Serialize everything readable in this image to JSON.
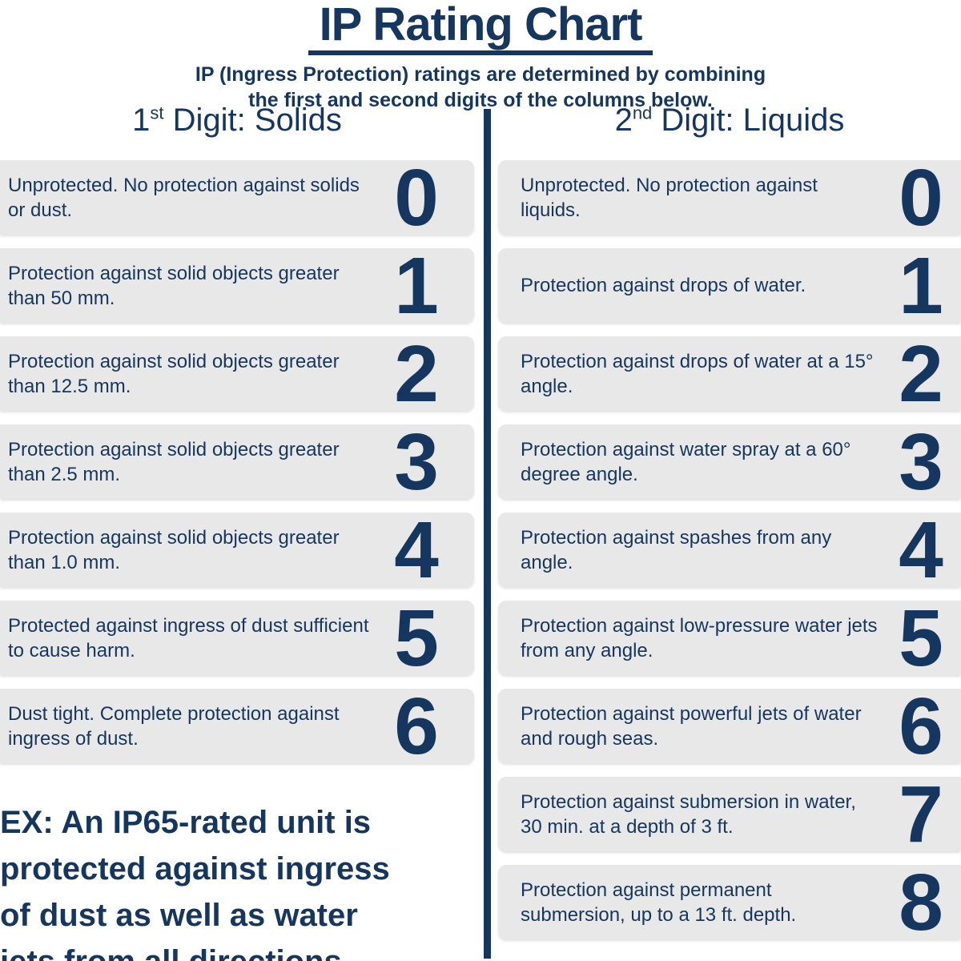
{
  "title": "IP Rating Chart",
  "subtitle_lines": [
    "IP (Ingress Protection) ratings are determined by combining",
    "the first and second digits of the columns below."
  ],
  "colors": {
    "navy": "#14365f",
    "box_gray": "#e8e8e8"
  },
  "columns": {
    "solids": {
      "heading": {
        "prefix": "1",
        "sup": "st",
        "rest": " Digit: Solids"
      },
      "rows": [
        {
          "digit": "0",
          "text": "Unprotected. No protection against solids or dust."
        },
        {
          "digit": "1",
          "text": "Protection against solid objects greater than 50 mm."
        },
        {
          "digit": "2",
          "text": "Protection against solid objects greater than 12.5 mm."
        },
        {
          "digit": "3",
          "text": "Protection against solid objects greater than 2.5 mm."
        },
        {
          "digit": "4",
          "text": "Protection against solid objects greater than 1.0 mm."
        },
        {
          "digit": "5",
          "text": "Protected against ingress of dust sufficient to cause harm."
        },
        {
          "digit": "6",
          "text": "Dust tight. Complete protection against ingress of dust."
        }
      ]
    },
    "liquids": {
      "heading": {
        "prefix": "2",
        "sup": "nd",
        "rest": " Digit: Liquids"
      },
      "rows": [
        {
          "digit": "0",
          "text": "Unprotected. No protection against liquids."
        },
        {
          "digit": "1",
          "text": "Protection against drops of water."
        },
        {
          "digit": "2",
          "text": "Protection against drops of water at a 15° angle."
        },
        {
          "digit": "3",
          "text": "Protection against water spray at a 60° degree angle."
        },
        {
          "digit": "4",
          "text": "Protection against spashes from any angle."
        },
        {
          "digit": "5",
          "text": "Protection against low-pressure water jets from any angle."
        },
        {
          "digit": "6",
          "text": "Protection against powerful jets of water and rough seas."
        },
        {
          "digit": "7",
          "text": "Protection against submersion in water, 30 min. at a depth of 3 ft."
        },
        {
          "digit": "8",
          "text": "Protection against permanent submersion, up to a 13 ft. depth."
        }
      ]
    }
  },
  "example_lines": [
    "EX: An IP65-rated unit is",
    "protected against ingress",
    "of dust as well as water",
    "jets from all directions."
  ]
}
